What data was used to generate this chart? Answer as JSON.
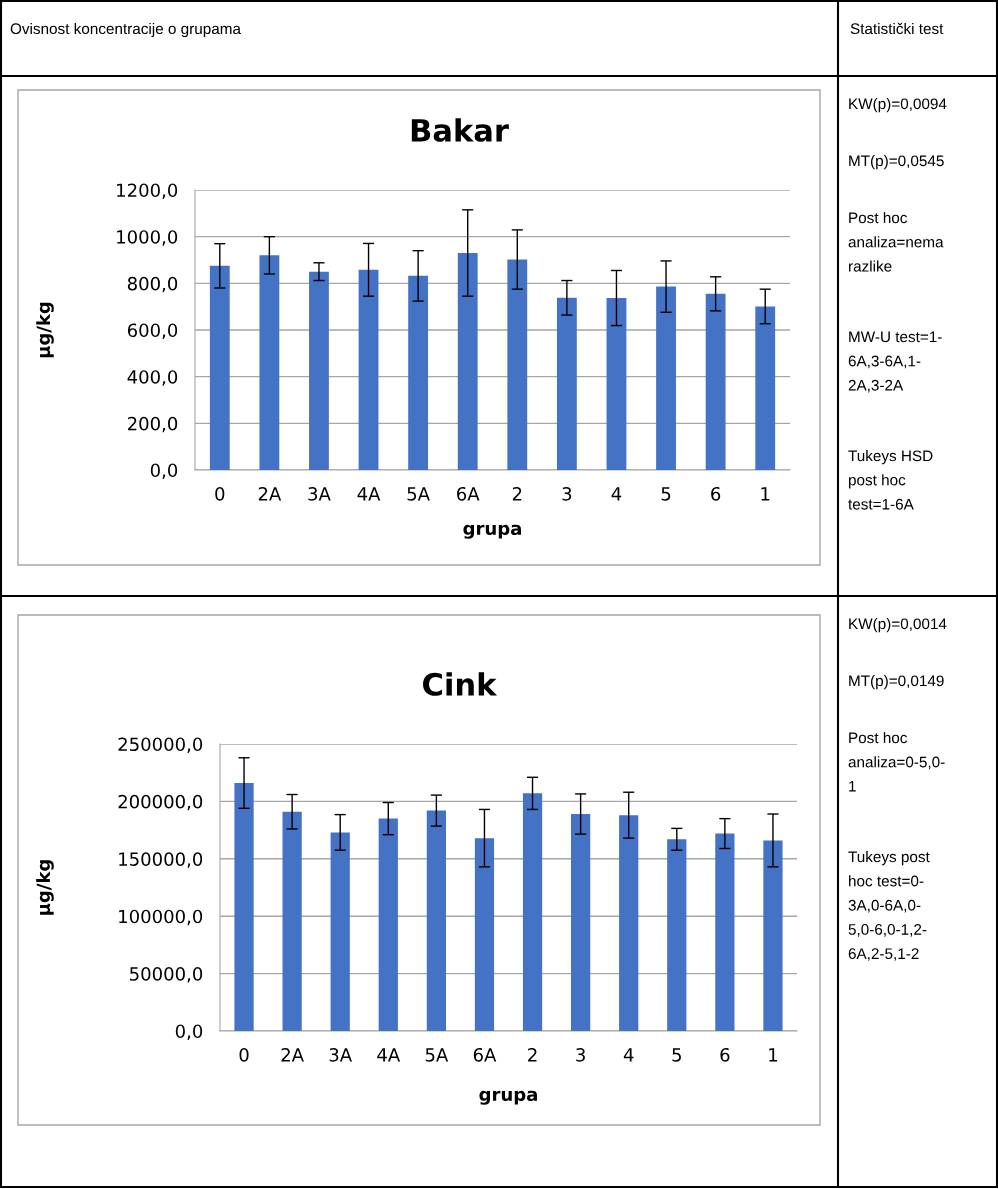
{
  "chart_data": [
    {
      "type": "other",
      "annotations": [
        "Ovisnost koncentracije o grupama",
        "Statistički test"
      ]
    },
    {
      "type": "bar",
      "title": "Bakar",
      "xlabel": "grupa",
      "ylabel": "µg/kg",
      "categories": [
        "0",
        "2A",
        "3A",
        "4A",
        "5A",
        "6A",
        "2",
        "3",
        "4",
        "5",
        "6",
        "1"
      ],
      "values": [
        875,
        920,
        850,
        858,
        832,
        930,
        902,
        738,
        737,
        786,
        755,
        701
      ],
      "errors": [
        95,
        80,
        38,
        113,
        108,
        185,
        127,
        74,
        118,
        110,
        73,
        74
      ],
      "color": "#4472c4",
      "ylim": [
        0,
        1200
      ],
      "yticks": [
        {
          "value": 0,
          "label": "0,0"
        },
        {
          "value": 200,
          "label": "200,0"
        },
        {
          "value": 400,
          "label": "400,0"
        },
        {
          "value": 600,
          "label": "600,0"
        },
        {
          "value": 800,
          "label": "800,0"
        },
        {
          "value": 1000,
          "label": "1000,0"
        },
        {
          "value": 1200,
          "label": "1200,0"
        }
      ],
      "grid": "y",
      "annotations": [
        "KW(p)=0,0094",
        "MT(p)=0,0545",
        "Post hoc\nanaliza=nema\nrazlike",
        "MW-U test=1-\n6A,3-6A,1-\n2A,3-2A",
        "Tukeys HSD\npost hoc\ntest=1-6A"
      ]
    },
    {
      "type": "bar",
      "title": "Cink",
      "xlabel": "grupa",
      "ylabel": "µg/kg",
      "categories": [
        "0",
        "2A",
        "3A",
        "4A",
        "5A",
        "6A",
        "2",
        "3",
        "4",
        "5",
        "6",
        "1"
      ],
      "values": [
        216000,
        191000,
        173000,
        185000,
        192000,
        168000,
        207000,
        189000,
        188000,
        167000,
        172000,
        166000
      ],
      "errors": [
        22000,
        15000,
        15500,
        14000,
        13500,
        25000,
        14000,
        17500,
        20000,
        9500,
        13000,
        23000
      ],
      "color": "#4472c4",
      "ylim": [
        0,
        250000
      ],
      "yticks": [
        {
          "value": 0,
          "label": "0,0"
        },
        {
          "value": 50000,
          "label": "50000,0"
        },
        {
          "value": 100000,
          "label": "100000,0"
        },
        {
          "value": 150000,
          "label": "150000,0"
        },
        {
          "value": 200000,
          "label": "200000,0"
        },
        {
          "value": 250000,
          "label": "250000,0"
        }
      ],
      "grid": "y",
      "annotations": [
        "KW(p)=0,0014",
        "MT(p)=0,0149",
        "Post hoc\nanaliza=0-5,0-\n1",
        "Tukeys post\nhoc test=0-\n3A,0-6A,0-\n5,0-6,0-1,2-\n6A,2-5,1-2"
      ]
    }
  ]
}
